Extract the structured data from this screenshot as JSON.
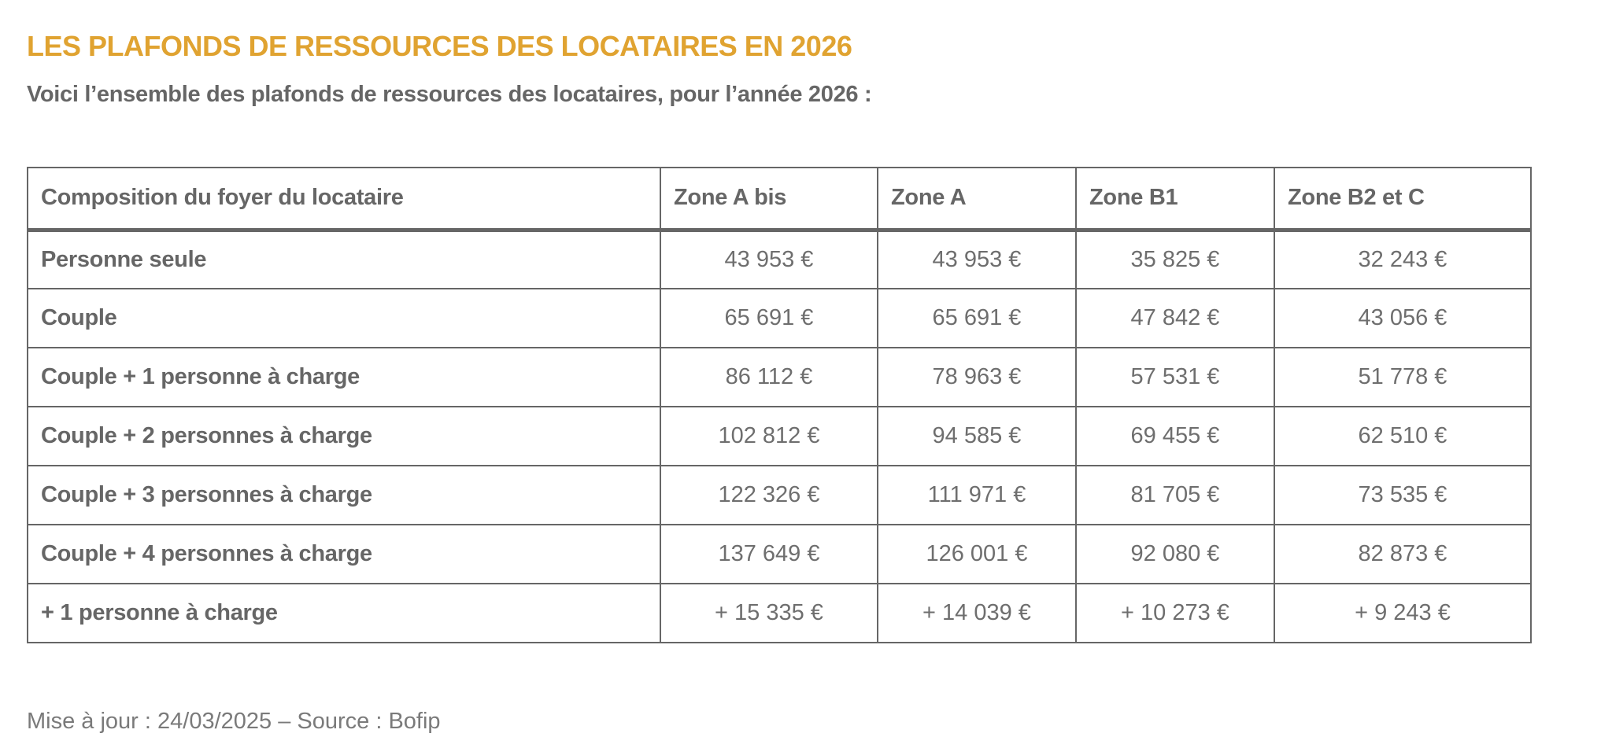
{
  "title": "LES PLAFONDS DE RESSOURCES DES LOCATAIRES EN 2026",
  "intro": "Voici l’ensemble des plafonds de ressources des locataires, pour l’année 2026 :",
  "colors": {
    "title": "#e0a331",
    "text": "#666666",
    "border": "#666666"
  },
  "table": {
    "headers": [
      "Composition du foyer du locataire",
      "Zone A bis",
      "Zone A",
      "Zone B1",
      "Zone B2 et C"
    ],
    "rows": [
      {
        "label": "Personne seule",
        "values": [
          "43 953 €",
          "43 953 €",
          "35 825 €",
          "32 243 €"
        ]
      },
      {
        "label": "Couple",
        "values": [
          "65 691 €",
          "65 691 €",
          "47 842 €",
          "43 056 €"
        ]
      },
      {
        "label": "Couple + 1 personne à charge",
        "values": [
          "86 112 €",
          "78 963 €",
          "57 531 €",
          "51 778 €"
        ]
      },
      {
        "label": "Couple + 2 personnes à charge",
        "values": [
          "102 812 €",
          "94 585 €",
          "69 455 €",
          "62 510 €"
        ]
      },
      {
        "label": "Couple + 3 personnes à charge",
        "values": [
          "122 326 €",
          "111 971 €",
          "81 705 €",
          "73 535 €"
        ]
      },
      {
        "label": "Couple + 4 personnes à charge",
        "values": [
          "137 649 €",
          "126 001 €",
          "92 080 €",
          "82 873 €"
        ]
      },
      {
        "label": "+ 1 personne à charge",
        "values": [
          "+ 15 335 €",
          "+ 14 039 €",
          "+ 10 273 €",
          "+ 9 243 €"
        ]
      }
    ]
  },
  "footer": "Mise à jour : 24/03/2025 – Source : Bofip"
}
